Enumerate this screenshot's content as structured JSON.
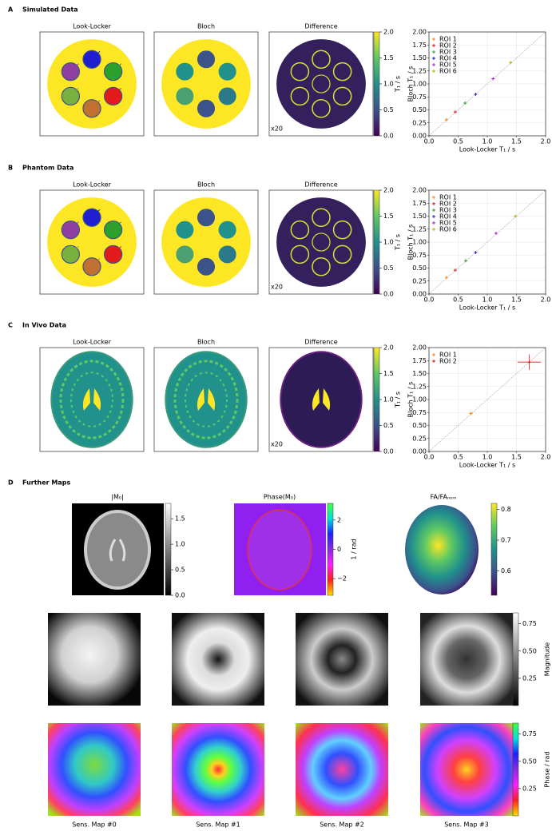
{
  "panels": [
    {
      "letter": "A",
      "title": "Simulated Data"
    },
    {
      "letter": "B",
      "title": "Phantom Data"
    },
    {
      "letter": "C",
      "title": "In Vivo Data"
    },
    {
      "letter": "D",
      "title": "Further Maps"
    }
  ],
  "map_titles": [
    "Look-Locker",
    "Bloch",
    "Difference"
  ],
  "scale_note": "x20",
  "t1_colorbar": {
    "label": "T₁ / s",
    "lim": [
      0,
      2
    ],
    "ticks": [
      {
        "value": 0,
        "label": "0.0"
      },
      {
        "value": 0.5,
        "label": "0.5"
      },
      {
        "value": 1,
        "label": "1.0"
      },
      {
        "value": 1.5,
        "label": "1.5"
      },
      {
        "value": 2,
        "label": "2.0"
      }
    ]
  },
  "chart_data": [
    {
      "type": "scatter",
      "xlabel": "Look-Locker T₁ / s",
      "ylabel": "Bloch T₁ / s",
      "xlim": [
        0,
        2
      ],
      "ylim": [
        0,
        2
      ],
      "xticks": [
        {
          "value": 0,
          "label": "0.0"
        },
        {
          "value": 0.5,
          "label": "0.5"
        },
        {
          "value": 1,
          "label": "1.0"
        },
        {
          "value": 1.5,
          "label": "1.5"
        },
        {
          "value": 2,
          "label": "2.0"
        }
      ],
      "yticks": [
        {
          "value": 0,
          "label": "0.00"
        },
        {
          "value": 0.25,
          "label": "0.25"
        },
        {
          "value": 0.5,
          "label": "0.50"
        },
        {
          "value": 0.75,
          "label": "0.75"
        },
        {
          "value": 1,
          "label": "1.00"
        },
        {
          "value": 1.25,
          "label": "1.25"
        },
        {
          "value": 1.5,
          "label": "1.50"
        },
        {
          "value": 1.75,
          "label": "1.75"
        },
        {
          "value": 2,
          "label": "2.00"
        }
      ],
      "grid": true,
      "legend": "upper left",
      "series": [
        {
          "name": "ROI 1",
          "color": "#ff7f0e",
          "x": [
            0.3
          ],
          "values": [
            0.31
          ]
        },
        {
          "name": "ROI 2",
          "color": "#e31a1c",
          "x": [
            0.45
          ],
          "values": [
            0.46
          ]
        },
        {
          "name": "ROI 3",
          "color": "#2ca02c",
          "x": [
            0.62
          ],
          "values": [
            0.63
          ]
        },
        {
          "name": "ROI 4",
          "color": "#1f1fd0",
          "x": [
            0.8
          ],
          "values": [
            0.8
          ]
        },
        {
          "name": "ROI 5",
          "color": "#b21fd0",
          "x": [
            1.1
          ],
          "values": [
            1.1
          ]
        },
        {
          "name": "ROI 6",
          "color": "#b8b000",
          "x": [
            1.4
          ],
          "values": [
            1.41
          ]
        }
      ]
    },
    {
      "type": "scatter",
      "xlabel": "Look-Locker T₁ / s",
      "ylabel": "Bloch T₁ / s",
      "xlim": [
        0,
        2
      ],
      "ylim": [
        0,
        2
      ],
      "xticks": [
        {
          "value": 0,
          "label": "0.0"
        },
        {
          "value": 0.5,
          "label": "0.5"
        },
        {
          "value": 1,
          "label": "1.0"
        },
        {
          "value": 1.5,
          "label": "1.5"
        },
        {
          "value": 2,
          "label": "2.0"
        }
      ],
      "yticks": [
        {
          "value": 0,
          "label": "0.00"
        },
        {
          "value": 0.25,
          "label": "0.25"
        },
        {
          "value": 0.5,
          "label": "0.50"
        },
        {
          "value": 0.75,
          "label": "0.75"
        },
        {
          "value": 1,
          "label": "1.00"
        },
        {
          "value": 1.25,
          "label": "1.25"
        },
        {
          "value": 1.5,
          "label": "1.50"
        },
        {
          "value": 1.75,
          "label": "1.75"
        },
        {
          "value": 2,
          "label": "2.00"
        }
      ],
      "grid": true,
      "legend": "upper left",
      "series": [
        {
          "name": "ROI 1",
          "color": "#ff7f0e",
          "x": [
            0.3
          ],
          "values": [
            0.32
          ]
        },
        {
          "name": "ROI 2",
          "color": "#e31a1c",
          "x": [
            0.45
          ],
          "values": [
            0.46
          ]
        },
        {
          "name": "ROI 3",
          "color": "#2ca02c",
          "x": [
            0.63
          ],
          "values": [
            0.64
          ]
        },
        {
          "name": "ROI 4",
          "color": "#1f1fd0",
          "x": [
            0.8
          ],
          "values": [
            0.8
          ]
        },
        {
          "name": "ROI 5",
          "color": "#b21fd0",
          "x": [
            1.15
          ],
          "values": [
            1.17
          ]
        },
        {
          "name": "ROI 6",
          "color": "#b8b000",
          "x": [
            1.48
          ],
          "values": [
            1.5
          ]
        }
      ]
    },
    {
      "type": "scatter",
      "xlabel": "Look-Locker T₁ / s",
      "ylabel": "Bloch T₁ / s",
      "xlim": [
        0,
        2
      ],
      "ylim": [
        0,
        2
      ],
      "xticks": [
        {
          "value": 0,
          "label": "0.0"
        },
        {
          "value": 0.5,
          "label": "0.5"
        },
        {
          "value": 1,
          "label": "1.0"
        },
        {
          "value": 1.5,
          "label": "1.5"
        },
        {
          "value": 2,
          "label": "2.0"
        }
      ],
      "yticks": [
        {
          "value": 0,
          "label": "0.00"
        },
        {
          "value": 0.25,
          "label": "0.25"
        },
        {
          "value": 0.5,
          "label": "0.50"
        },
        {
          "value": 0.75,
          "label": "0.75"
        },
        {
          "value": 1,
          "label": "1.00"
        },
        {
          "value": 1.25,
          "label": "1.25"
        },
        {
          "value": 1.5,
          "label": "1.50"
        },
        {
          "value": 1.75,
          "label": "1.75"
        },
        {
          "value": 2,
          "label": "2.00"
        }
      ],
      "grid": true,
      "legend": "upper left",
      "series": [
        {
          "name": "ROI 1",
          "color": "#ff7f0e",
          "x": [
            0.72
          ],
          "values": [
            0.73
          ]
        },
        {
          "name": "ROI 2",
          "color": "#e31a1c",
          "x": [
            1.72
          ],
          "values": [
            1.72
          ],
          "xerr": [
            0.2
          ],
          "yerr": [
            0.15
          ]
        }
      ]
    }
  ],
  "further_maps": {
    "maps": [
      {
        "title": "|M₀|",
        "colorbar": {
          "lim": [
            0,
            1.8
          ],
          "ticks": [
            {
              "value": 0,
              "label": "0.0"
            },
            {
              "value": 0.5,
              "label": "0.5"
            },
            {
              "value": 1,
              "label": "1.0"
            },
            {
              "value": 1.5,
              "label": "1.5"
            }
          ]
        }
      },
      {
        "title": "Phase(M₀)",
        "colorbar": {
          "label": "1 / rad",
          "lim": [
            -3.14,
            3.14
          ],
          "ticks": [
            {
              "value": -2,
              "label": "−2"
            },
            0,
            2
          ]
        }
      },
      {
        "title": "FA/FAₙₒₘ",
        "colorbar": {
          "lim": [
            0.52,
            0.82
          ],
          "ticks": [
            0.6,
            0.7,
            0.8
          ]
        }
      }
    ],
    "sens_magnitude_colorbar": {
      "label": "Magnitude",
      "lim": [
        0,
        0.85
      ],
      "ticks": [
        0.25,
        {
          "value": 0.5,
          "label": "0.50"
        },
        0.75
      ]
    },
    "sens_phase_colorbar": {
      "label": "Phase / rad",
      "lim": [
        0,
        0.85
      ],
      "ticks": [
        0.25,
        {
          "value": 0.5,
          "label": "0.50"
        },
        0.75
      ]
    },
    "sens_maps": [
      "Sens. Map #0",
      "Sens. Map #1",
      "Sens. Map #2",
      "Sens. Map #3"
    ]
  }
}
